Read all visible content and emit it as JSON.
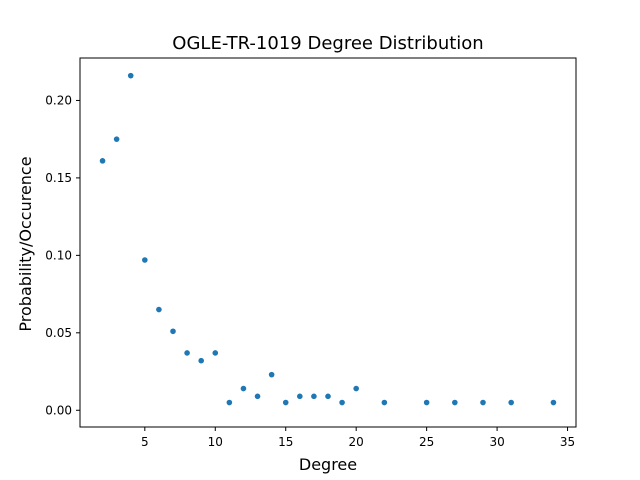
{
  "chart_data": {
    "type": "scatter",
    "title": "OGLE-TR-1019 Degree Distribution",
    "xlabel": "Degree",
    "ylabel": "Probability/Occurence",
    "xlim": [
      0.4,
      35.6
    ],
    "ylim": [
      -0.0108,
      0.2274
    ],
    "xticks": [
      5,
      10,
      15,
      20,
      25,
      30,
      35
    ],
    "yticks": [
      0.0,
      0.05,
      0.1,
      0.15,
      0.2
    ],
    "ytick_labels": [
      "0.00",
      "0.05",
      "0.10",
      "0.15",
      "0.20"
    ],
    "grid": false,
    "marker_color": "#1f77b4",
    "points": [
      {
        "x": 2,
        "y": 0.161
      },
      {
        "x": 3,
        "y": 0.175
      },
      {
        "x": 4,
        "y": 0.216
      },
      {
        "x": 5,
        "y": 0.097
      },
      {
        "x": 6,
        "y": 0.065
      },
      {
        "x": 7,
        "y": 0.051
      },
      {
        "x": 8,
        "y": 0.037
      },
      {
        "x": 9,
        "y": 0.032
      },
      {
        "x": 10,
        "y": 0.037
      },
      {
        "x": 11,
        "y": 0.005
      },
      {
        "x": 12,
        "y": 0.014
      },
      {
        "x": 13,
        "y": 0.009
      },
      {
        "x": 14,
        "y": 0.023
      },
      {
        "x": 15,
        "y": 0.005
      },
      {
        "x": 16,
        "y": 0.009
      },
      {
        "x": 17,
        "y": 0.009
      },
      {
        "x": 18,
        "y": 0.009
      },
      {
        "x": 19,
        "y": 0.005
      },
      {
        "x": 20,
        "y": 0.014
      },
      {
        "x": 22,
        "y": 0.005
      },
      {
        "x": 25,
        "y": 0.005
      },
      {
        "x": 27,
        "y": 0.005
      },
      {
        "x": 29,
        "y": 0.005
      },
      {
        "x": 31,
        "y": 0.005
      },
      {
        "x": 34,
        "y": 0.005
      }
    ]
  }
}
